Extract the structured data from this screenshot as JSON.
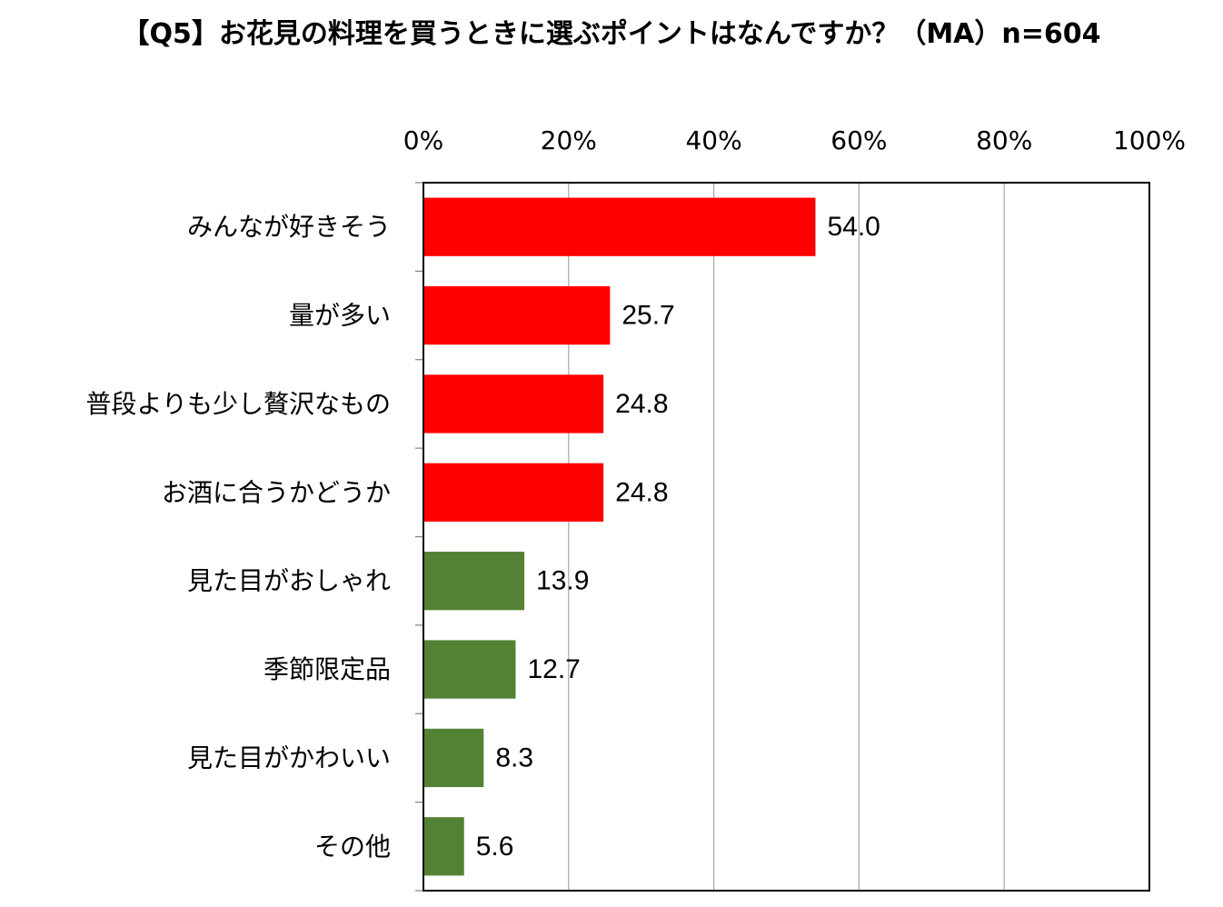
{
  "chart_data": {
    "type": "bar",
    "orientation": "horizontal",
    "title": "【Q5】お花見の料理を買うときに選ぶポイントはなんですか？（MA）n=604",
    "categories": [
      "みんなが好きそう",
      "量が多い",
      "普段よりも少し贅沢なもの",
      "お酒に合うかどうか",
      "見た目がおしゃれ",
      "季節限定品",
      "見た目がかわいい",
      "その他"
    ],
    "values": [
      54.0,
      25.7,
      24.8,
      24.8,
      13.9,
      12.7,
      8.3,
      5.6
    ],
    "value_labels": [
      "54.0",
      "25.7",
      "24.8",
      "24.8",
      "13.9",
      "12.7",
      "8.3",
      "5.6"
    ],
    "bar_colors": [
      "#ff0000",
      "#ff0000",
      "#ff0000",
      "#ff0000",
      "#548235",
      "#548235",
      "#548235",
      "#548235"
    ],
    "xlim": [
      0,
      100
    ],
    "x_ticks": [
      0,
      20,
      40,
      60,
      80,
      100
    ],
    "x_tick_labels": [
      "0%",
      "20%",
      "40%",
      "60%",
      "80%",
      "100%"
    ],
    "x_axis_position": "top",
    "grid": true,
    "grid_color": "#a6a6a6",
    "legend": "none"
  }
}
